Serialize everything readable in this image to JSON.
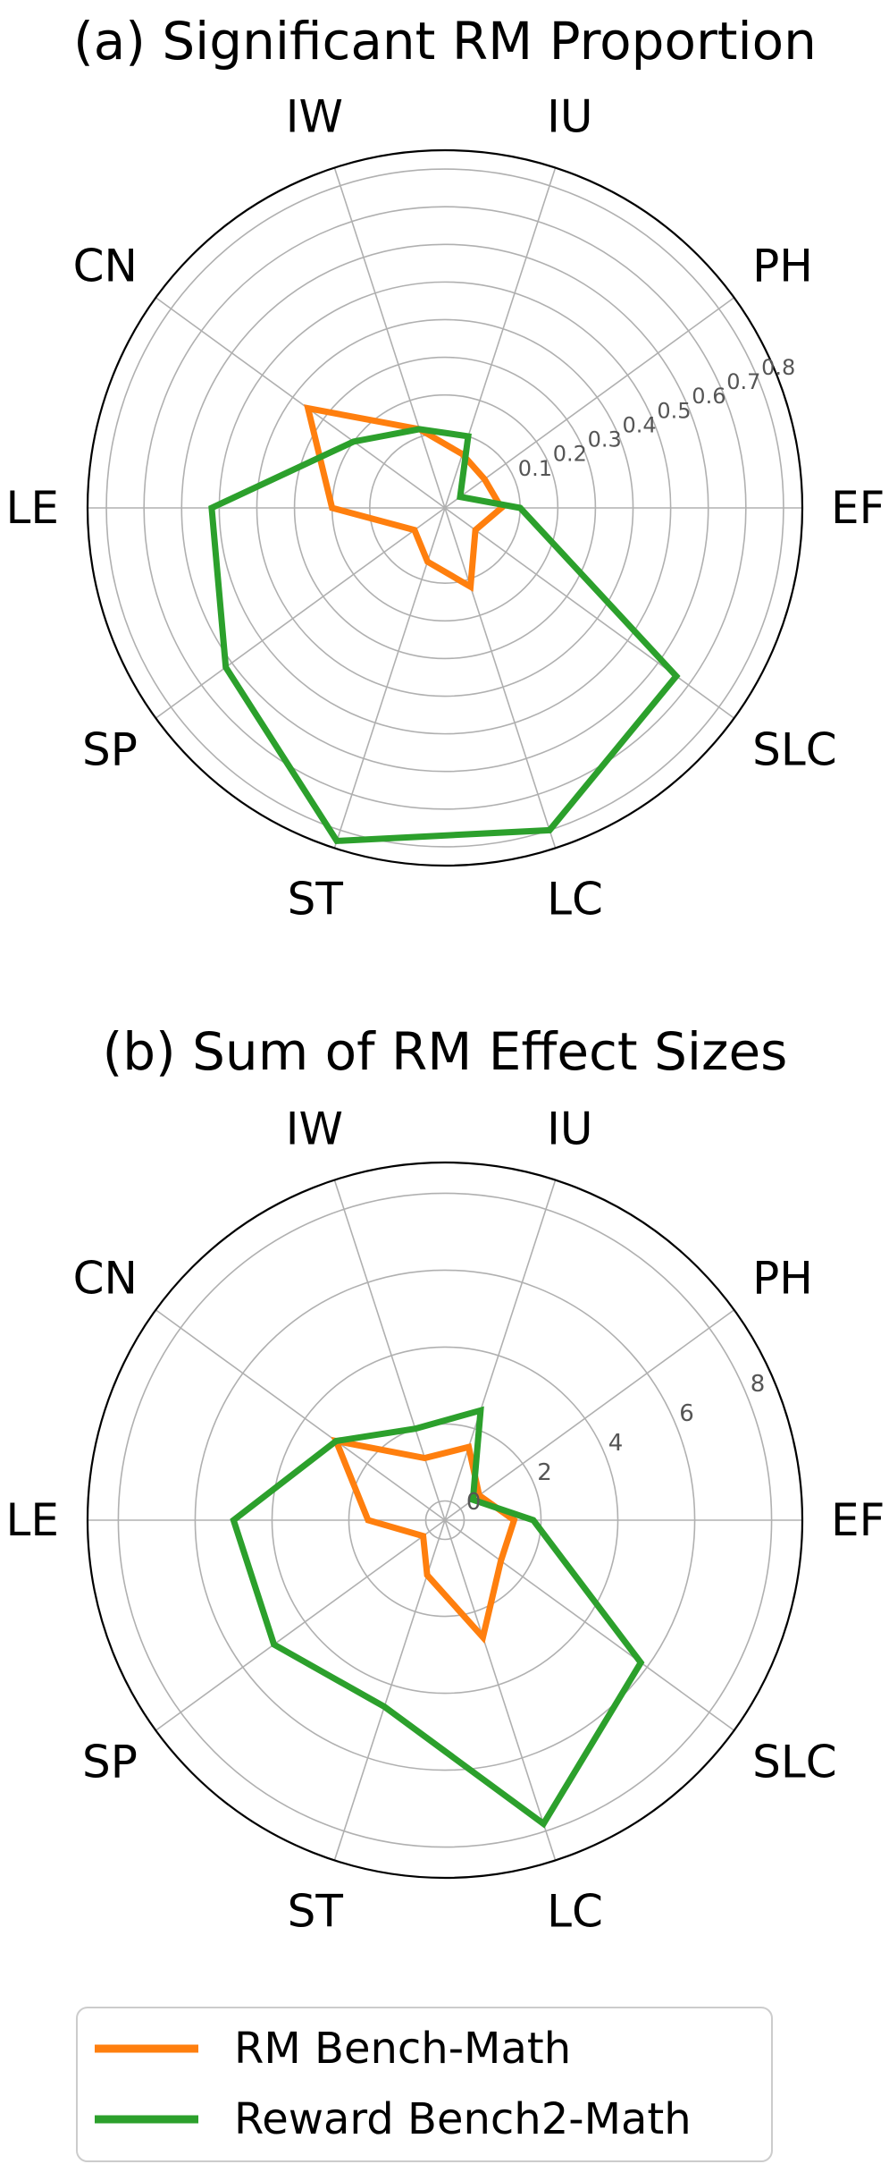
{
  "chart_data": [
    {
      "type": "radar",
      "title": "(a) Significant RM Proportion",
      "categories": [
        "EF",
        "PH",
        "IU",
        "IW",
        "CN",
        "LE",
        "SP",
        "ST",
        "LC",
        "SLC"
      ],
      "rlim": [
        -0.1,
        0.85
      ],
      "rticks": [
        "0.1",
        "0.2",
        "0.3",
        "0.4",
        "0.5",
        "0.6",
        "0.7",
        "0.8"
      ],
      "rtick_values": [
        0.1,
        0.2,
        0.3,
        0.4,
        0.5,
        0.6,
        0.7,
        0.8
      ],
      "grid": true,
      "series": [
        {
          "name": "RM Bench-Math",
          "color": "#ff7f0e",
          "values": [
            0.05,
            0.03,
            0.05,
            0.12,
            0.35,
            0.2,
            0.0,
            0.05,
            0.12,
            0.0
          ]
        },
        {
          "name": "Reward Bench2-Math",
          "color": "#2ca02c",
          "values": [
            0.1,
            -0.05,
            0.1,
            0.12,
            0.2,
            0.52,
            0.62,
            0.83,
            0.8,
            0.66
          ]
        }
      ]
    },
    {
      "type": "radar",
      "title": "(b) Sum of RM Effect Sizes",
      "categories": [
        "EF",
        "PH",
        "IU",
        "IW",
        "CN",
        "LE",
        "SP",
        "ST",
        "LC",
        "SLC"
      ],
      "rlim": [
        -0.5,
        8.8
      ],
      "rticks": [
        "0",
        "2",
        "4",
        "6",
        "8"
      ],
      "rtick_values": [
        0,
        2,
        4,
        6,
        8
      ],
      "grid": true,
      "series": [
        {
          "name": "RM Bench-Math",
          "color": "#ff7f0e",
          "values": [
            1.3,
            0.6,
            1.5,
            1.2,
            3.0,
            1.5,
            0.2,
            1.0,
            2.7,
            1.3
          ]
        },
        {
          "name": "Reward Bench2-Math",
          "color": "#2ca02c",
          "values": [
            1.8,
            0.4,
            2.5,
            2.0,
            3.0,
            5.0,
            5.0,
            4.6,
            7.8,
            5.8
          ]
        }
      ]
    }
  ],
  "legend": {
    "placement": "bottom-center",
    "items": [
      {
        "label": "RM Bench-Math",
        "color": "#ff7f0e"
      },
      {
        "label": "Reward Bench2-Math",
        "color": "#2ca02c"
      }
    ]
  }
}
